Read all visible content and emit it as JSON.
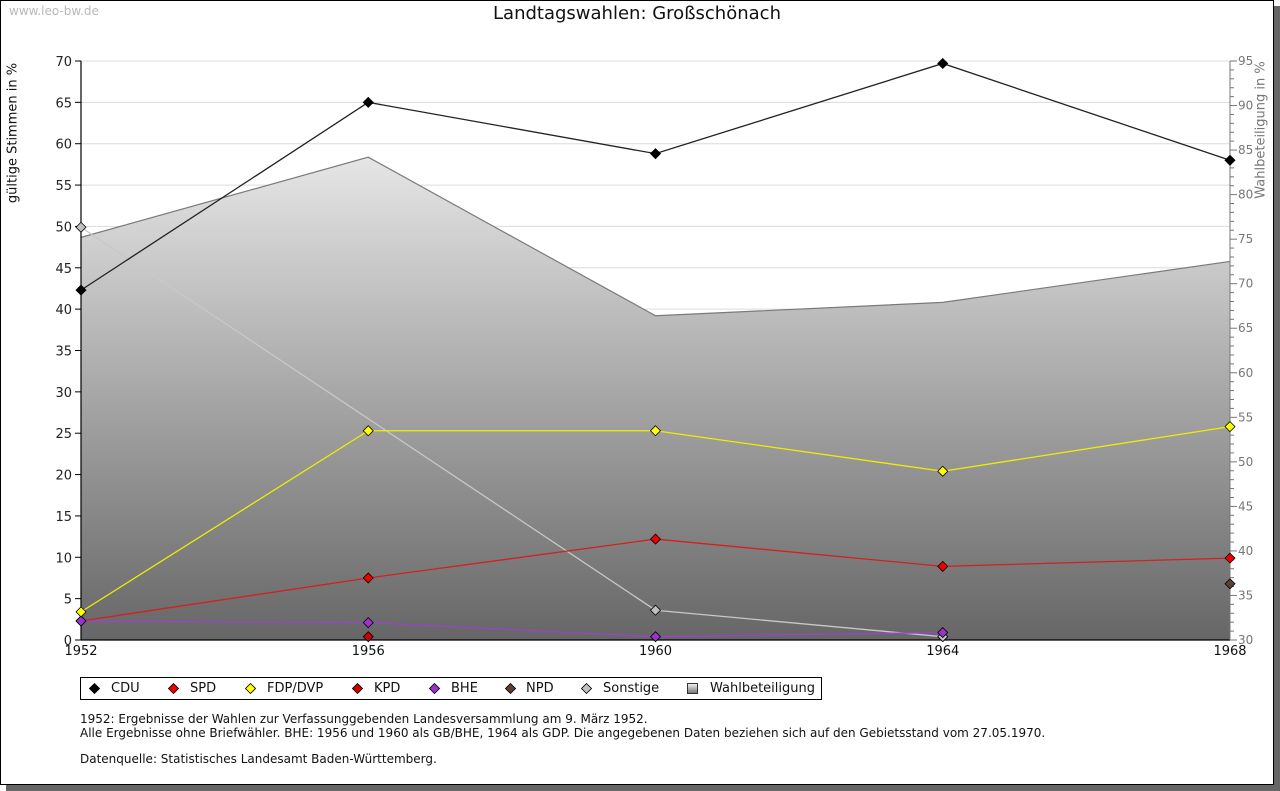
{
  "watermark": "www.leo-bw.de",
  "chart_data": {
    "type": "line",
    "title": "Landtagswahlen: Großschönach",
    "xlabel": "",
    "ylabel": "gültige Stimmen in %",
    "y2label": "Wahlbeteiligung in %",
    "x": [
      "1952",
      "1956",
      "1960",
      "1964",
      "1968"
    ],
    "ylim": [
      0,
      70
    ],
    "y2lim": [
      30,
      95
    ],
    "yticks": [
      0,
      5,
      10,
      15,
      20,
      25,
      30,
      35,
      40,
      45,
      50,
      55,
      60,
      65,
      70
    ],
    "y2ticks": [
      30,
      35,
      40,
      45,
      50,
      55,
      60,
      65,
      70,
      75,
      80,
      85,
      90,
      95
    ],
    "grid": true,
    "legend_position": "bottom",
    "series": [
      {
        "name": "CDU",
        "line_color": "#222222",
        "marker_color": "#000000",
        "values": [
          42.3,
          65.0,
          58.8,
          69.7,
          58.0
        ]
      },
      {
        "name": "SPD",
        "line_color": "#d42020",
        "marker_color": "#ee0000",
        "values": [
          2.3,
          7.5,
          12.2,
          8.9,
          9.9
        ]
      },
      {
        "name": "FDP/DVP",
        "line_color": "#eeee00",
        "marker_color": "#ffff00",
        "values": [
          3.4,
          25.3,
          25.3,
          20.4,
          25.8
        ]
      },
      {
        "name": "KPD",
        "line_color": "#b00000",
        "marker_color": "#cc0000",
        "values": [
          null,
          0.4,
          null,
          null,
          null
        ]
      },
      {
        "name": "BHE",
        "line_color": "#9944cc",
        "marker_color": "#9933cc",
        "values": [
          2.3,
          2.1,
          0.4,
          0.9,
          null
        ]
      },
      {
        "name": "NPD",
        "line_color": "#5c4033",
        "marker_color": "#5c4033",
        "values": [
          null,
          null,
          null,
          null,
          6.8
        ]
      },
      {
        "name": "Sonstige",
        "line_color": "#c8c8c8",
        "marker_color": "#c0c0c0",
        "values": [
          49.9,
          null,
          3.6,
          0.4,
          null
        ]
      }
    ],
    "area_series": {
      "name": "Wahlbeteiligung",
      "axis": "right",
      "values": [
        75.2,
        84.2,
        66.4,
        67.9,
        72.5
      ],
      "color_top": "#ffffff",
      "color_bottom": "#666666",
      "stroke": "#7a7a7a"
    }
  },
  "notes": [
    "1952: Ergebnisse der Wahlen zur Verfassunggebenden Landesversammlung am 9. März 1952.",
    "Alle Ergebnisse ohne Briefwähler. BHE: 1956 und 1960 als GB/BHE, 1964 als GDP. Die angegebenen Daten beziehen sich auf den Gebietsstand vom 27.05.1970."
  ],
  "source": "Datenquelle: Statistisches Landesamt Baden-Württemberg."
}
